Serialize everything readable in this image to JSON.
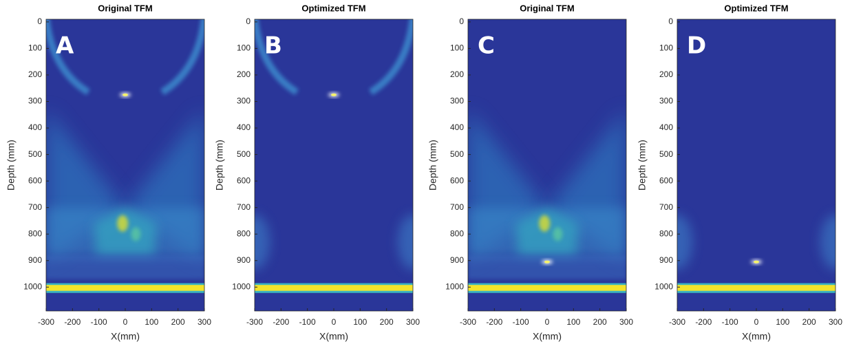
{
  "chart_data": [
    {
      "type": "image",
      "title": "Original TFM",
      "panel_label": "A",
      "xlabel": "X(mm)",
      "ylabel": "Depth (mm)",
      "xlim": [
        -300,
        300
      ],
      "ylim": [
        1090,
        -10
      ],
      "xticks": [
        -300,
        -200,
        -100,
        0,
        100,
        200,
        300
      ],
      "yticks": [
        0,
        100,
        200,
        300,
        400,
        500,
        600,
        700,
        800,
        900,
        1000
      ]
    },
    {
      "type": "image",
      "title": "Optimized TFM",
      "panel_label": "B",
      "xlabel": "X(mm)",
      "ylabel": "Depth (mm)",
      "xlim": [
        -300,
        300
      ],
      "ylim": [
        1090,
        -10
      ],
      "xticks": [
        -300,
        -200,
        -100,
        0,
        100,
        200,
        300
      ],
      "yticks": [
        0,
        100,
        200,
        300,
        400,
        500,
        600,
        700,
        800,
        900,
        1000
      ]
    },
    {
      "type": "image",
      "title": "Original TFM",
      "panel_label": "C",
      "xlabel": "X(mm)",
      "ylabel": "Depth (mm)",
      "xlim": [
        -300,
        300
      ],
      "ylim": [
        1090,
        -10
      ],
      "xticks": [
        -300,
        -200,
        -100,
        0,
        100,
        200,
        300
      ],
      "yticks": [
        0,
        100,
        200,
        300,
        400,
        500,
        600,
        700,
        800,
        900,
        1000
      ]
    },
    {
      "type": "image",
      "title": "Optimized TFM",
      "panel_label": "D",
      "xlabel": "X(mm)",
      "ylabel": "Depth (mm)",
      "xlim": [
        -300,
        300
      ],
      "ylim": [
        1090,
        -10
      ],
      "xticks": [
        -300,
        -200,
        -100,
        0,
        100,
        200,
        300
      ],
      "yticks": [
        0,
        100,
        200,
        300,
        400,
        500,
        600,
        700,
        800,
        900,
        1000
      ]
    }
  ]
}
